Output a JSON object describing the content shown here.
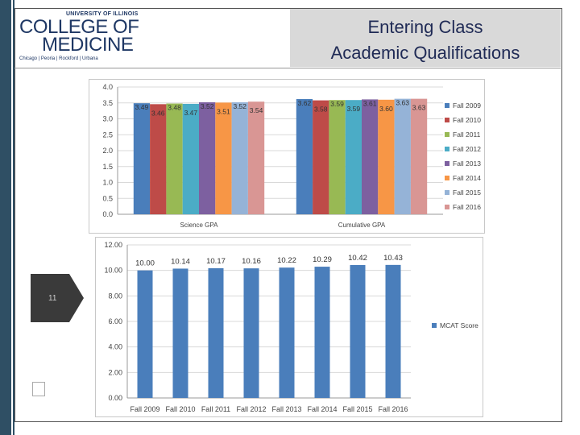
{
  "slide": {
    "university": "UNIVERSITY OF ILLINOIS",
    "college_line1": "COLLEGE OF",
    "college_line2": "MEDICINE",
    "campuses": "Chicago | Peoria | Rockford | Urbana",
    "title_line1": "Entering Class",
    "title_line2": "Academic Qualifications",
    "page_number": "11"
  },
  "colors": {
    "left_bar": "#2f4f64",
    "title": "#1f2a55",
    "logo": "#1e3764",
    "series": [
      "#4a7ebb",
      "#be4b48",
      "#98b954",
      "#4bacc6",
      "#7d60a0",
      "#f79646",
      "#95b3d7",
      "#d99694"
    ],
    "mcat": "#4a7ebb"
  },
  "chart_data": [
    {
      "type": "bar",
      "categories": [
        "Science GPA",
        "Cumulative GPA"
      ],
      "series": [
        {
          "name": "Fall 2009",
          "values": [
            3.49,
            3.62
          ]
        },
        {
          "name": "Fall 2010",
          "values": [
            3.46,
            3.58
          ]
        },
        {
          "name": "Fall 2011",
          "values": [
            3.48,
            3.59
          ]
        },
        {
          "name": "Fall 2012",
          "values": [
            3.47,
            3.59
          ]
        },
        {
          "name": "Fall 2013",
          "values": [
            3.52,
            3.61
          ]
        },
        {
          "name": "Fall 2014",
          "values": [
            3.51,
            3.6
          ]
        },
        {
          "name": "Fall 2015",
          "values": [
            3.52,
            3.63
          ]
        },
        {
          "name": "Fall 2016",
          "values": [
            3.54,
            3.63
          ]
        }
      ],
      "ylim": [
        0,
        4
      ],
      "yticks": [
        "0.0",
        "0.5",
        "1.0",
        "1.5",
        "2.0",
        "2.5",
        "3.0",
        "3.5",
        "4.0"
      ],
      "legend": "right",
      "grid": true
    },
    {
      "type": "bar",
      "categories": [
        "Fall 2009",
        "Fall 2010",
        "Fall 2011",
        "Fall 2012",
        "Fall 2013",
        "Fall 2014",
        "Fall 2015",
        "Fall 2016"
      ],
      "series": [
        {
          "name": "MCAT Score",
          "values": [
            10.0,
            10.14,
            10.17,
            10.16,
            10.22,
            10.29,
            10.42,
            10.43
          ]
        }
      ],
      "ylim": [
        0,
        12
      ],
      "yticks": [
        "0.00",
        "2.00",
        "4.00",
        "6.00",
        "8.00",
        "10.00",
        "12.00"
      ],
      "legend": "right",
      "grid": true
    }
  ]
}
